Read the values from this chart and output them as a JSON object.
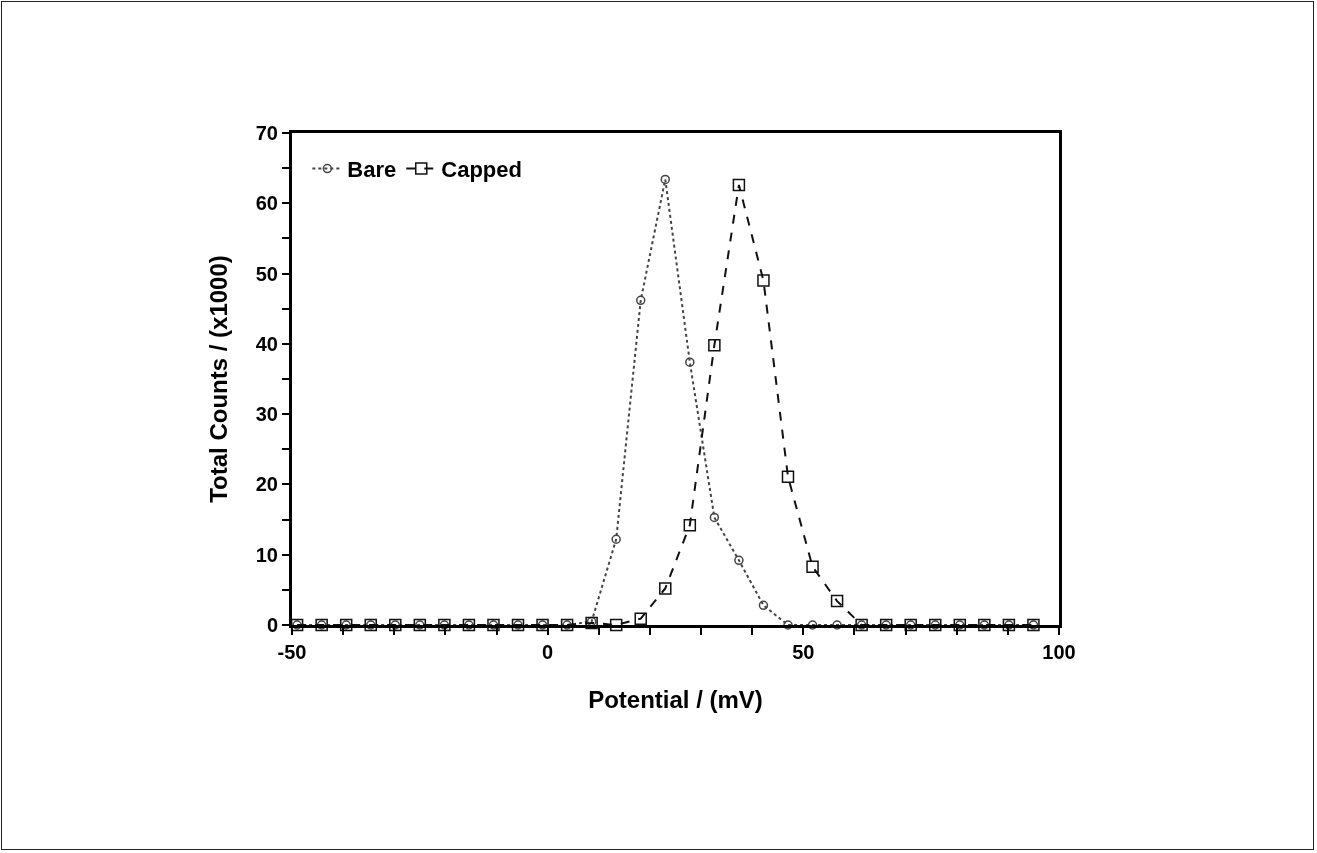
{
  "chart_data": {
    "type": "line",
    "xlabel": "Potential / (mV)",
    "ylabel": "Total Counts / (x1000)",
    "x": [
      -49,
      -44.2,
      -39.4,
      -34.6,
      -29.8,
      -25,
      -20.2,
      -15.4,
      -10.6,
      -5.8,
      -1,
      3.8,
      8.6,
      13.4,
      18.2,
      23,
      27.8,
      32.6,
      37.4,
      42.2,
      47,
      51.8,
      56.6,
      61.4,
      66.2,
      71,
      75.8,
      80.6,
      85.4,
      90.2,
      95
    ],
    "series": [
      {
        "name": "Bare",
        "color": "#444444",
        "marker": "circle",
        "line_style": "dotted",
        "values": [
          0,
          0,
          0,
          0,
          0,
          0,
          0,
          0,
          0,
          0,
          0,
          0,
          0.5,
          12.2,
          46.2,
          63.4,
          37.4,
          15.3,
          9.2,
          2.8,
          0,
          0,
          0,
          0,
          0,
          0,
          0,
          0,
          0,
          0,
          0
        ]
      },
      {
        "name": "Capped",
        "color": "#111111",
        "marker": "square",
        "line_style": "dashed",
        "values": [
          0,
          0,
          0,
          0,
          0,
          0,
          0,
          0,
          0,
          0,
          0,
          0,
          0.3,
          0,
          0.9,
          5.2,
          14.2,
          39.8,
          62.6,
          49,
          21.1,
          8.3,
          3.4,
          0,
          0,
          0,
          0,
          0,
          0,
          0,
          0
        ]
      }
    ],
    "xlim": [
      -50,
      100
    ],
    "xticks": [
      -50,
      {
        "value": -40,
        "label": null
      },
      {
        "value": -30,
        "label": null
      },
      {
        "value": -20,
        "label": null
      },
      {
        "value": -10,
        "label": null
      },
      0,
      {
        "value": 10,
        "label": null
      },
      {
        "value": 20,
        "label": null
      },
      {
        "value": 30,
        "label": null
      },
      {
        "value": 40,
        "label": null
      },
      50,
      {
        "value": 60,
        "label": null
      },
      {
        "value": 70,
        "label": null
      },
      {
        "value": 80,
        "label": null
      },
      {
        "value": 90,
        "label": null
      },
      100
    ],
    "ylim": [
      0,
      70
    ],
    "yticks": [
      0,
      {
        "value": 5,
        "label": null
      },
      10,
      {
        "value": 15,
        "label": null
      },
      20,
      {
        "value": 25,
        "label": null
      },
      30,
      {
        "value": 35,
        "label": null
      },
      40,
      {
        "value": 45,
        "label": null
      },
      50,
      {
        "value": 55,
        "label": null
      },
      60,
      {
        "value": 65,
        "label": null
      },
      70
    ],
    "grid": false,
    "legend": "top left"
  }
}
